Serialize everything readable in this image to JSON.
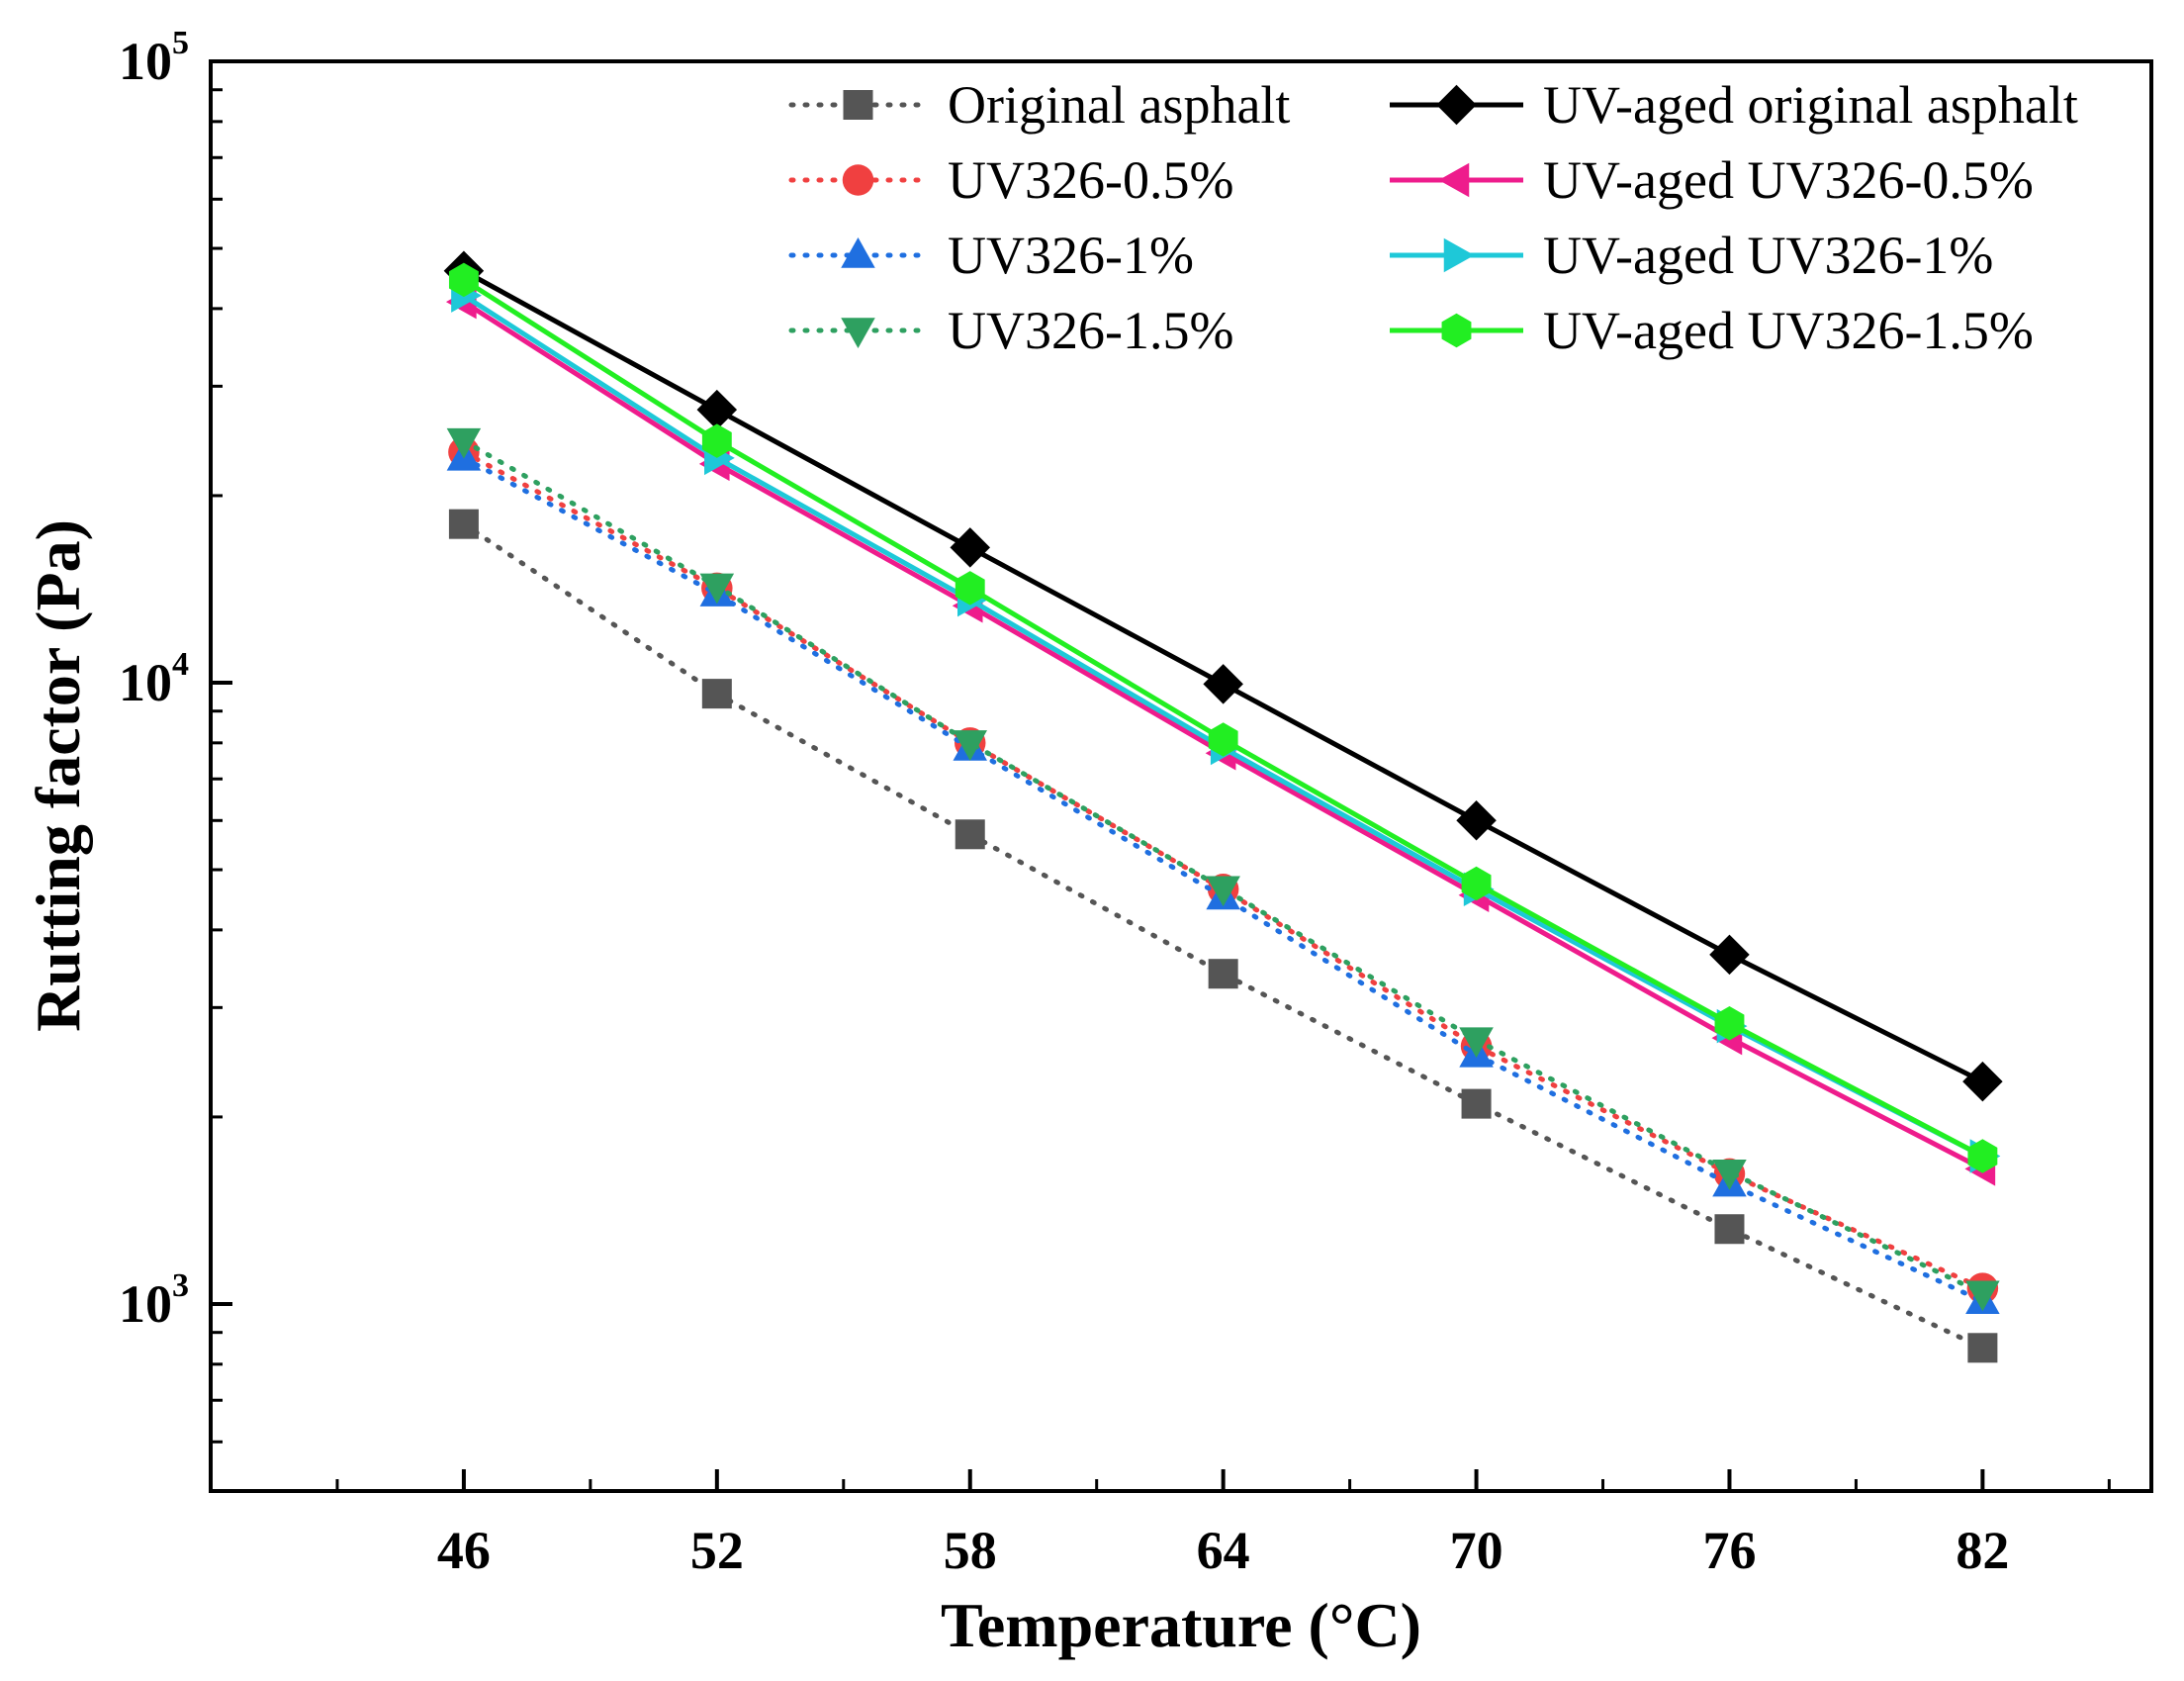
{
  "chart_data": {
    "type": "line",
    "title": "",
    "xlabel": "Temperature (°C)",
    "ylabel": "Rutting factor (Pa)",
    "yscale": "log",
    "xlim": [
      40,
      86
    ],
    "ylim": [
      500,
      100000
    ],
    "x": [
      46,
      52,
      58,
      64,
      70,
      76,
      82
    ],
    "xticks": [
      "46",
      "52",
      "58",
      "64",
      "70",
      "76",
      "82"
    ],
    "yticks": [
      {
        "value": 1000,
        "base": "10",
        "exp": "3"
      },
      {
        "value": 10000,
        "base": "10",
        "exp": "4"
      },
      {
        "value": 100000,
        "base": "10",
        "exp": "5"
      }
    ],
    "grid": false,
    "legend_position": "top-right",
    "series": [
      {
        "name": "Original asphalt",
        "color": "#555555",
        "marker": "square",
        "line": "dotted",
        "values": [
          18000,
          9600,
          5700,
          3400,
          2100,
          1320,
          850
        ]
      },
      {
        "name": "UV326-0.5%",
        "color": "#f04040",
        "marker": "circle",
        "line": "dotted",
        "values": [
          23500,
          14200,
          8000,
          4650,
          2600,
          1620,
          1060
        ]
      },
      {
        "name": "UV326-1%",
        "color": "#1f6fe0",
        "marker": "triangle-up",
        "line": "dotted",
        "values": [
          23000,
          13900,
          7850,
          4520,
          2520,
          1560,
          1010
        ]
      },
      {
        "name": "UV326-1.5%",
        "color": "#2ea060",
        "marker": "triangle-down",
        "line": "dotted",
        "values": [
          24500,
          14300,
          8000,
          4660,
          2660,
          1630,
          1040
        ]
      },
      {
        "name": "UV-aged original asphalt",
        "color": "#000000",
        "marker": "diamond",
        "line": "solid",
        "values": [
          46000,
          27500,
          16500,
          9950,
          6000,
          3650,
          2280
        ]
      },
      {
        "name": "UV-aged UV326-0.5%",
        "color": "#ee1c8c",
        "marker": "triangle-left",
        "line": "solid",
        "values": [
          41000,
          22500,
          13300,
          7700,
          4550,
          2680,
          1650
        ]
      },
      {
        "name": "UV-aged UV326-1%",
        "color": "#1ec8d8",
        "marker": "triangle-right",
        "line": "solid",
        "values": [
          42000,
          23000,
          13600,
          7850,
          4650,
          2800,
          1730
        ]
      },
      {
        "name": "UV-aged UV326-1.5%",
        "color": "#22ee22",
        "marker": "hexagon",
        "line": "solid",
        "values": [
          44500,
          24500,
          14200,
          8100,
          4750,
          2830,
          1730
        ]
      }
    ]
  }
}
